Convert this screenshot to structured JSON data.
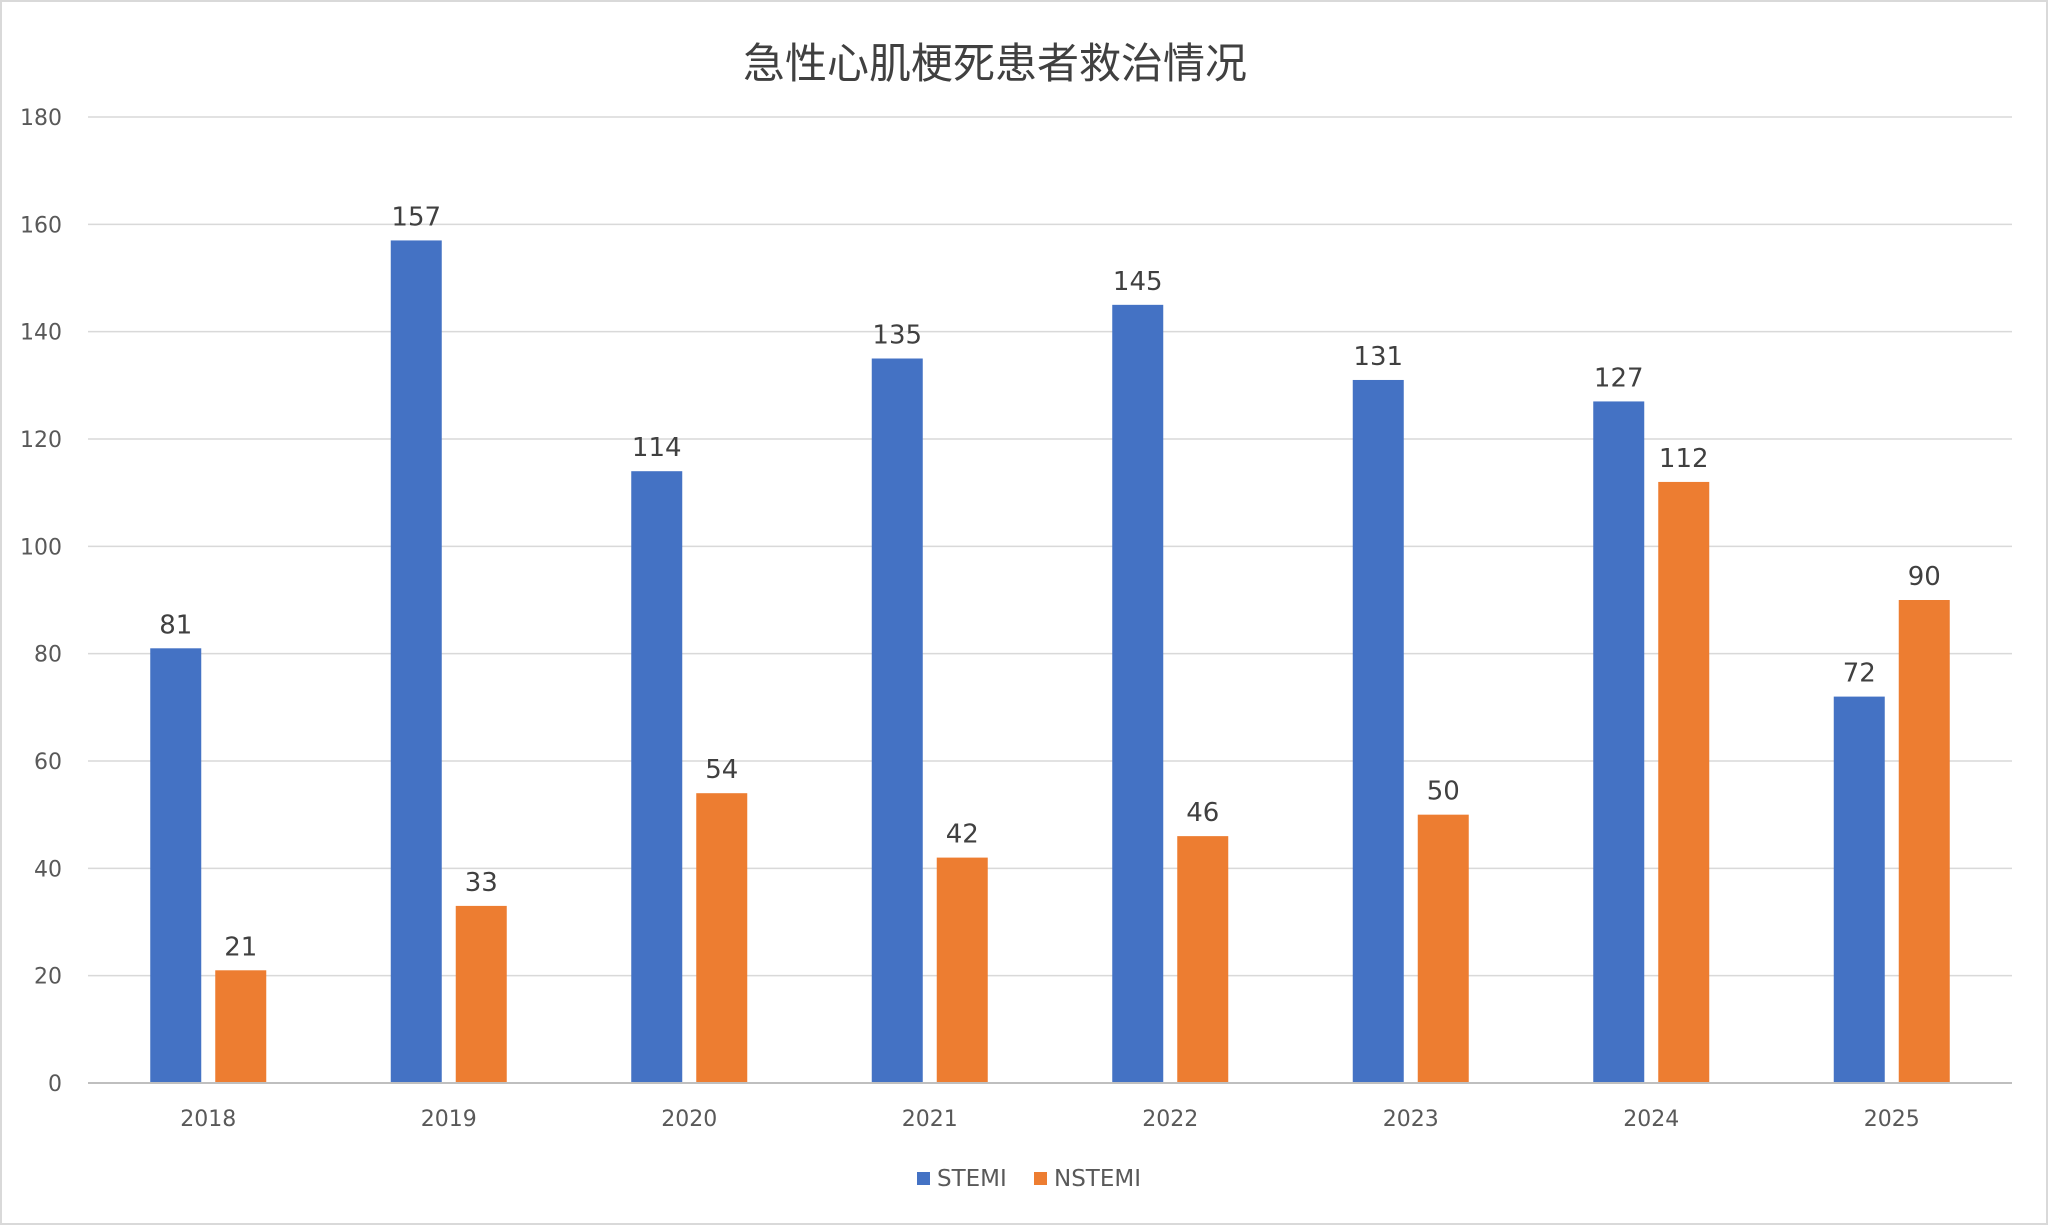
{
  "chart_data": {
    "type": "bar",
    "title": "急性心肌梗死患者救治情况",
    "categories": [
      "2018",
      "2019",
      "2020",
      "2021",
      "2022",
      "2023",
      "2024",
      "2025"
    ],
    "series": [
      {
        "name": "STEMI",
        "color": "#4472C4",
        "values": [
          81,
          157,
          114,
          135,
          145,
          131,
          127,
          72
        ]
      },
      {
        "name": "NSTEMI",
        "color": "#ED7D31",
        "values": [
          21,
          33,
          54,
          42,
          46,
          50,
          112,
          90
        ]
      }
    ],
    "ylim": [
      0,
      180
    ],
    "yticks": [
      0,
      20,
      40,
      60,
      80,
      100,
      120,
      140,
      160,
      180
    ],
    "grid": true,
    "legend": "bottom-center",
    "data_labels": true
  }
}
